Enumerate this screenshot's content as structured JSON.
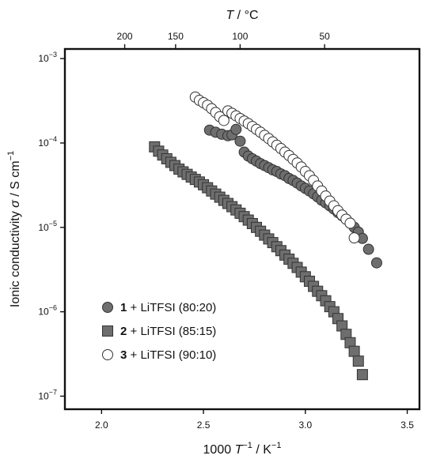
{
  "chart_data": {
    "type": "scatter",
    "title": "",
    "xlabel": {
      "prefix": "1000 ",
      "italic": "T",
      "sup": "−1",
      "suffix": " / K",
      "sup2": "−1"
    },
    "ylabel": {
      "prefix": "Ionic conductivity ",
      "italic": "σ",
      "suffix": " / S cm",
      "sup": "−1"
    },
    "x2label": {
      "italic": "T",
      "suffix": " / °C"
    },
    "x_scale": "linear",
    "y_scale": "log",
    "xlim": [
      1.82,
      3.56
    ],
    "ylim": [
      7e-08,
      0.0013
    ],
    "x_ticks": [
      {
        "value": 2.0,
        "label": "2.0"
      },
      {
        "value": 2.5,
        "label": "2.5"
      },
      {
        "value": 3.0,
        "label": "3.0"
      },
      {
        "value": 3.5,
        "label": "3.5"
      }
    ],
    "y_ticks": [
      {
        "value": 1e-07,
        "base": "10",
        "exp": "−7"
      },
      {
        "value": 1e-06,
        "base": "10",
        "exp": "−6"
      },
      {
        "value": 1e-05,
        "base": "10",
        "exp": "−5"
      },
      {
        "value": 0.0001,
        "base": "10",
        "exp": "−4"
      },
      {
        "value": 0.001,
        "base": "10",
        "exp": "−3"
      }
    ],
    "top_ticks": [
      {
        "celsius": 200,
        "label": "200"
      },
      {
        "celsius": 150,
        "label": "150"
      },
      {
        "celsius": 100,
        "label": "100"
      },
      {
        "celsius": 50,
        "label": "50"
      }
    ],
    "grid": false,
    "legend_position": "bottom-left",
    "series": [
      {
        "legend_number": "1",
        "legend_text": " + LiTFSI (80:20)",
        "marker": "circle",
        "fill": "#6e6e6e",
        "x": [
          2.53,
          2.56,
          2.59,
          2.62,
          2.64,
          2.66,
          2.68,
          2.7,
          2.72,
          2.74,
          2.76,
          2.78,
          2.8,
          2.82,
          2.84,
          2.86,
          2.88,
          2.9,
          2.92,
          2.94,
          2.96,
          2.98,
          3.0,
          3.02,
          3.04,
          3.06,
          3.08,
          3.1,
          3.12,
          3.14,
          3.16,
          3.18,
          3.2,
          3.22,
          3.24,
          3.26,
          3.28,
          3.31,
          3.35
        ],
        "y": [
          0.000142,
          0.000134,
          0.000127,
          0.000122,
          0.000125,
          0.000145,
          0.000105,
          7.8e-05,
          7e-05,
          6.5e-05,
          6.1e-05,
          5.7e-05,
          5.4e-05,
          5.1e-05,
          4.8e-05,
          4.6e-05,
          4.3e-05,
          4.1e-05,
          3.8e-05,
          3.6e-05,
          3.35e-05,
          3.1e-05,
          2.9e-05,
          2.7e-05,
          2.5e-05,
          2.3e-05,
          2.1e-05,
          1.95e-05,
          1.8e-05,
          1.65e-05,
          1.5e-05,
          1.38e-05,
          1.25e-05,
          1.12e-05,
          1e-05,
          8.8e-06,
          7.4e-06,
          5.5e-06,
          3.8e-06
        ]
      },
      {
        "legend_number": "2",
        "legend_text": " + LiTFSI (85:15)",
        "marker": "square",
        "fill": "#6e6e6e",
        "x": [
          2.26,
          2.28,
          2.3,
          2.32,
          2.34,
          2.36,
          2.38,
          2.4,
          2.42,
          2.44,
          2.46,
          2.48,
          2.5,
          2.52,
          2.54,
          2.56,
          2.58,
          2.6,
          2.62,
          2.64,
          2.66,
          2.68,
          2.7,
          2.72,
          2.74,
          2.76,
          2.78,
          2.8,
          2.82,
          2.84,
          2.86,
          2.88,
          2.9,
          2.92,
          2.94,
          2.96,
          2.98,
          3.0,
          3.02,
          3.04,
          3.06,
          3.08,
          3.1,
          3.12,
          3.14,
          3.16,
          3.18,
          3.2,
          3.22,
          3.24,
          3.26,
          3.28
        ],
        "y": [
          9e-05,
          8e-05,
          7.2e-05,
          6.5e-05,
          5.9e-05,
          5.4e-05,
          4.9e-05,
          4.55e-05,
          4.25e-05,
          3.95e-05,
          3.7e-05,
          3.45e-05,
          3.2e-05,
          2.95e-05,
          2.7e-05,
          2.48e-05,
          2.28e-05,
          2.09e-05,
          1.92e-05,
          1.76e-05,
          1.61e-05,
          1.47e-05,
          1.34e-05,
          1.22e-05,
          1.11e-05,
          1e-05,
          9e-06,
          8.1e-06,
          7.3e-06,
          6.6e-06,
          5.9e-06,
          5.3e-06,
          4.7e-06,
          4.2e-06,
          3.75e-06,
          3.35e-06,
          2.95e-06,
          2.6e-06,
          2.3e-06,
          2e-06,
          1.75e-06,
          1.55e-06,
          1.35e-06,
          1.15e-06,
          1e-06,
          8.3e-07,
          6.8e-07,
          5.4e-07,
          4.3e-07,
          3.4e-07,
          2.6e-07,
          1.8e-07
        ]
      },
      {
        "legend_number": "3",
        "legend_text": " + LiTFSI (90:10)",
        "marker": "circle",
        "fill": "#ffffff",
        "x": [
          2.46,
          2.48,
          2.5,
          2.52,
          2.54,
          2.56,
          2.58,
          2.6,
          2.62,
          2.64,
          2.66,
          2.68,
          2.7,
          2.72,
          2.74,
          2.76,
          2.78,
          2.8,
          2.82,
          2.84,
          2.86,
          2.88,
          2.9,
          2.92,
          2.94,
          2.96,
          2.98,
          3.0,
          3.02,
          3.04,
          3.06,
          3.08,
          3.1,
          3.12,
          3.14,
          3.16,
          3.18,
          3.2,
          3.22,
          3.24
        ],
        "y": [
          0.00035,
          0.00032,
          0.0003,
          0.00028,
          0.000255,
          0.00023,
          0.000205,
          0.000185,
          0.00024,
          0.000225,
          0.00021,
          0.000195,
          0.000182,
          0.00017,
          0.000157,
          0.000145,
          0.000134,
          0.000123,
          0.000113,
          0.000103,
          9.4e-05,
          8.6e-05,
          7.8e-05,
          7.1e-05,
          6.4e-05,
          5.8e-05,
          5.2e-05,
          4.6e-05,
          4.1e-05,
          3.6e-05,
          3.1e-05,
          2.7e-05,
          2.35e-05,
          2.05e-05,
          1.8e-05,
          1.58e-05,
          1.4e-05,
          1.25e-05,
          1.12e-05,
          7.5e-06
        ]
      }
    ]
  }
}
